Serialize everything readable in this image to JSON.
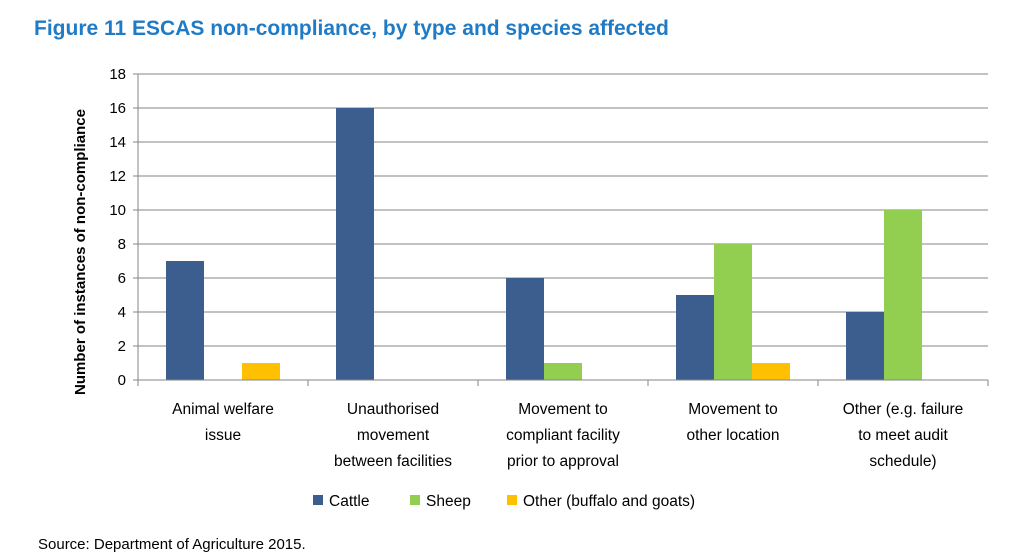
{
  "figure": {
    "title": "Figure 11 ESCAS non-compliance, by type and species affected",
    "source": "Source: Department of Agriculture 2015."
  },
  "colors": {
    "title": "#1f7bc6",
    "cattle": "#3b5e8e",
    "sheep": "#92cf50",
    "other": "#fec000",
    "grid": "#868686"
  },
  "chart_data": {
    "type": "bar",
    "title": "",
    "xlabel": "",
    "ylabel": "Number of instances of non-compliance",
    "ylim": [
      0,
      18
    ],
    "yticks": [
      0,
      2,
      4,
      6,
      8,
      10,
      12,
      14,
      16,
      18
    ],
    "grid": true,
    "legend_position": "bottom",
    "categories": [
      [
        "Animal welfare",
        "issue"
      ],
      [
        "Unauthorised",
        "movement",
        "between facilities"
      ],
      [
        "Movement to",
        "compliant facility",
        "prior to approval"
      ],
      [
        "Movement to",
        "other location"
      ],
      [
        "Other (e.g. failure",
        "to meet audit",
        "schedule)"
      ]
    ],
    "series": [
      {
        "name": "Cattle",
        "values": [
          7,
          16,
          6,
          5,
          4
        ]
      },
      {
        "name": "Sheep",
        "values": [
          0,
          0,
          1,
          8,
          10
        ]
      },
      {
        "name": "Other (buffalo and goats)",
        "values": [
          1,
          0,
          0,
          1,
          0
        ]
      }
    ]
  }
}
